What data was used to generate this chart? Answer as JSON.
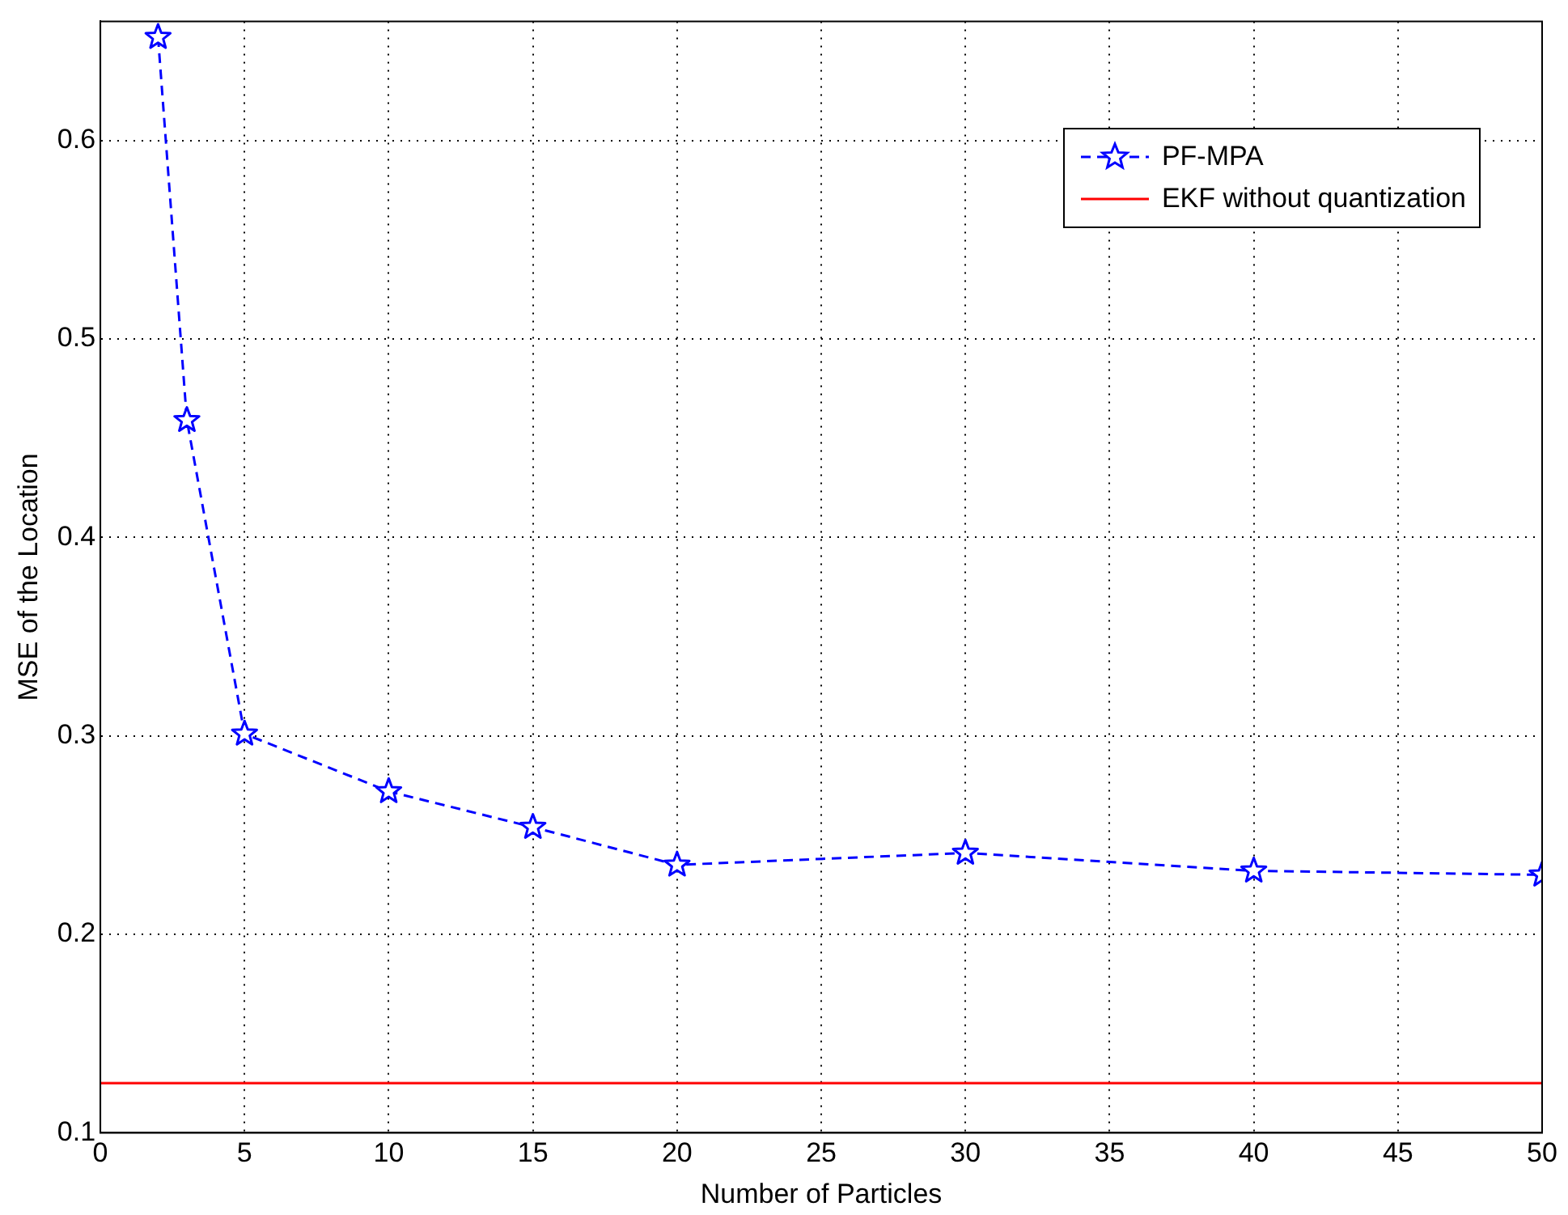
{
  "chart_data": {
    "type": "line",
    "xlabel": "Number of Particles",
    "ylabel": "MSE of the Location",
    "xlim": [
      0,
      50
    ],
    "xticks": [
      0,
      5,
      10,
      15,
      20,
      25,
      30,
      35,
      40,
      45,
      50
    ],
    "ylim": [
      0.1,
      0.66
    ],
    "yticks": [
      0.1,
      0.2,
      0.3,
      0.4,
      0.5,
      0.6
    ],
    "grid": true,
    "legend": "top right",
    "series": [
      {
        "name": "PF-MPA",
        "color": "#0000ff",
        "x": [
          2,
          3,
          5,
          10,
          15,
          20,
          30,
          40,
          50
        ],
        "values": [
          0.652,
          0.459,
          0.301,
          0.272,
          0.254,
          0.235,
          0.241,
          0.232,
          0.23
        ],
        "marker": "star",
        "line_style": "dashed"
      },
      {
        "name": "EKF without quantization",
        "color": "#ff0000",
        "x": [
          0,
          50
        ],
        "values": [
          0.125,
          0.125
        ],
        "marker": "none",
        "line_style": "solid"
      }
    ]
  }
}
